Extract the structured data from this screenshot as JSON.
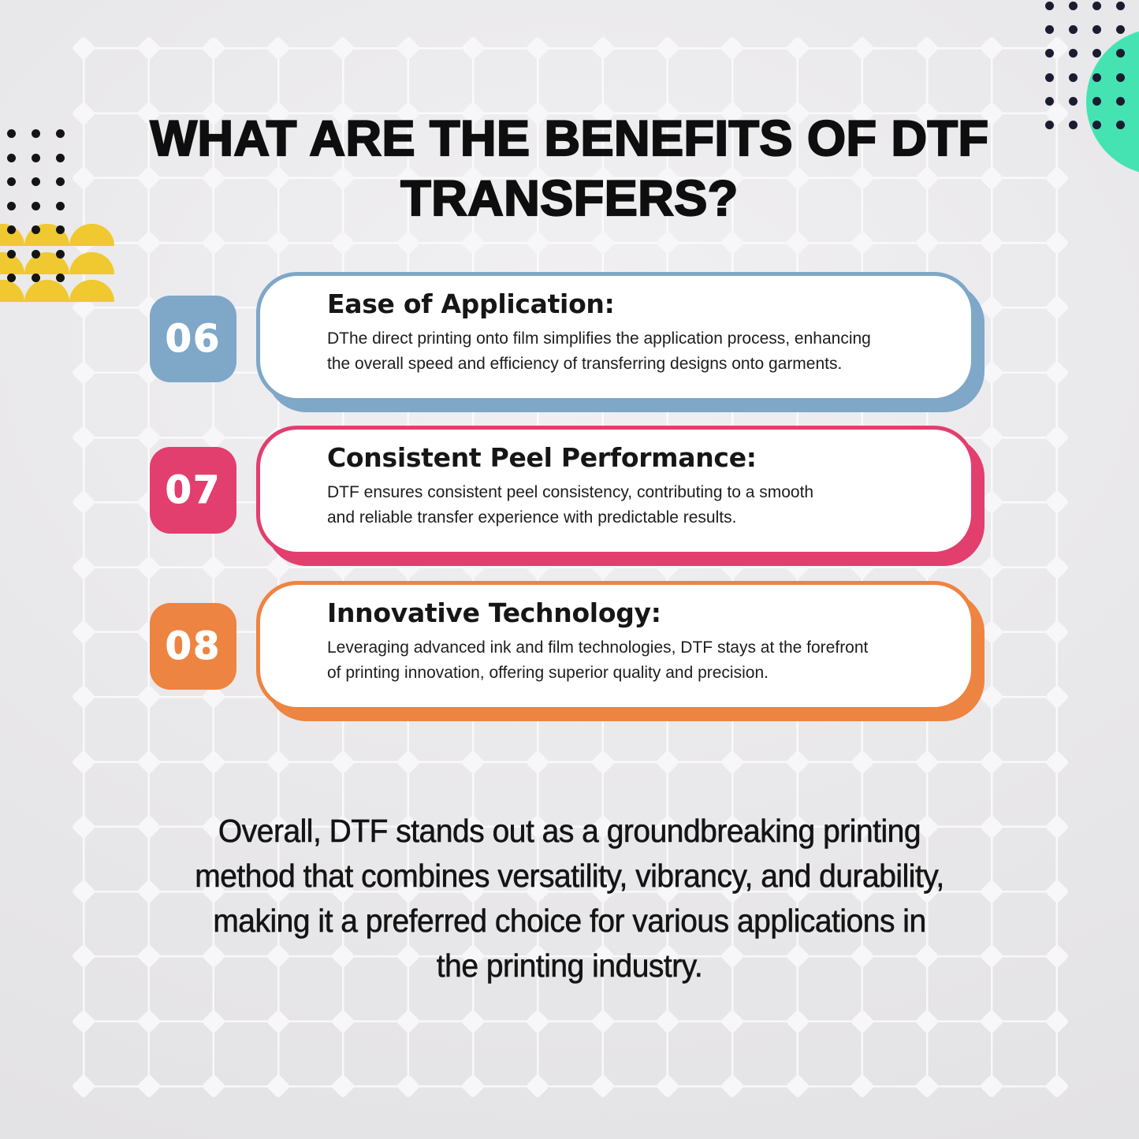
{
  "page": {
    "title_line1": "WHAT ARE THE BENEFITS OF DTF",
    "title_line2": "TRANSFERS?"
  },
  "cards": [
    {
      "number": "06",
      "heading": "Ease of Application:",
      "body": [
        "DThe direct printing onto film simplifies the application process, enhancing",
        "the overall speed and efficiency of transferring designs onto garments."
      ],
      "accent": "#7ea7c8"
    },
    {
      "number": "07",
      "heading": "Consistent Peel Performance:",
      "body": [
        "DTF ensures consistent peel consistency, contributing to a smooth",
        "and reliable transfer experience with predictable results."
      ],
      "accent": "#e23e6e"
    },
    {
      "number": "08",
      "heading": "Innovative Technology:",
      "body": [
        "Leveraging advanced ink and film technologies, DTF stays at the forefront",
        "of printing innovation, offering superior quality and precision."
      ],
      "accent": "#ee8441"
    }
  ],
  "footer": {
    "lines": [
      "Overall, DTF stands out as a groundbreaking printing",
      "method that combines versatility, vibrancy, and durability,",
      "making it a preferred choice for various applications in",
      "the printing industry."
    ]
  },
  "decor": {
    "background_base": "#e9e8ea",
    "grid_line_color": "rgba(255,255,255,0.75)",
    "diamond_color": "#f7f6f8",
    "teal_circle_color": "#46e3b2",
    "navy_dot_color": "#1b1b32",
    "black_dot_color": "#141414",
    "yellow_scallop_color": "#efc92f",
    "text_color": "#141414"
  }
}
